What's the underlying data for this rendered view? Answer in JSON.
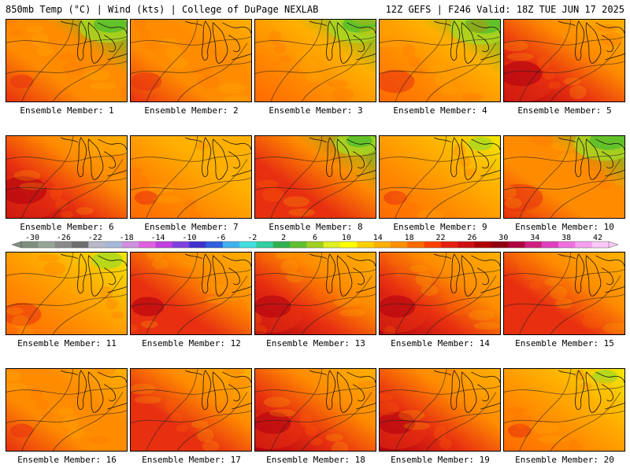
{
  "header": {
    "left": "850mb Temp (°C) | Wind (kts) | College of DuPage NEXLAB",
    "right": "12Z GEFS | F246 Valid: 18Z TUE JUN 17 2025"
  },
  "member_label_prefix": "Ensemble Member: ",
  "members": [
    {
      "id": 1,
      "label": "Ensemble Member: 1",
      "warmth": 0.55,
      "cool_ne": 0.9,
      "hot_sw": 0.3
    },
    {
      "id": 2,
      "label": "Ensemble Member: 2",
      "warmth": 0.55,
      "cool_ne": 0.2,
      "hot_sw": 0.4
    },
    {
      "id": 3,
      "label": "Ensemble Member: 3",
      "warmth": 0.45,
      "cool_ne": 0.9,
      "hot_sw": 0.2
    },
    {
      "id": 4,
      "label": "Ensemble Member: 4",
      "warmth": 0.35,
      "cool_ne": 1.0,
      "hot_sw": 0.5
    },
    {
      "id": 5,
      "label": "Ensemble Member: 5",
      "warmth": 0.8,
      "cool_ne": 0.1,
      "hot_sw": 0.9
    },
    {
      "id": 6,
      "label": "Ensemble Member: 6",
      "warmth": 0.75,
      "cool_ne": 0.1,
      "hot_sw": 1.0
    },
    {
      "id": 7,
      "label": "Ensemble Member: 7",
      "warmth": 0.5,
      "cool_ne": 0.2,
      "hot_sw": 0.3
    },
    {
      "id": 8,
      "label": "Ensemble Member: 8",
      "warmth": 0.65,
      "cool_ne": 0.7,
      "hot_sw": 0.6
    },
    {
      "id": 9,
      "label": "Ensemble Member: 9",
      "warmth": 0.5,
      "cool_ne": 0.4,
      "hot_sw": 0.3
    },
    {
      "id": 10,
      "label": "Ensemble Member: 10",
      "warmth": 0.6,
      "cool_ne": 1.0,
      "hot_sw": 0.6
    },
    {
      "id": 11,
      "label": "Ensemble Member: 11",
      "warmth": 0.5,
      "cool_ne": 0.5,
      "hot_sw": 0.5
    },
    {
      "id": 12,
      "label": "Ensemble Member: 12",
      "warmth": 0.7,
      "cool_ne": 0.2,
      "hot_sw": 0.7
    },
    {
      "id": 13,
      "label": "Ensemble Member: 13",
      "warmth": 0.75,
      "cool_ne": 0.1,
      "hot_sw": 0.8
    },
    {
      "id": 14,
      "label": "Ensemble Member: 14",
      "warmth": 0.75,
      "cool_ne": 0.1,
      "hot_sw": 0.8
    },
    {
      "id": 15,
      "label": "Ensemble Member: 15",
      "warmth": 0.65,
      "cool_ne": 0.2,
      "hot_sw": 0.6
    },
    {
      "id": 16,
      "label": "Ensemble Member: 16",
      "warmth": 0.55,
      "cool_ne": 0.2,
      "hot_sw": 0.3
    },
    {
      "id": 17,
      "label": "Ensemble Member: 17",
      "warmth": 0.65,
      "cool_ne": 0.1,
      "hot_sw": 0.5
    },
    {
      "id": 18,
      "label": "Ensemble Member: 18",
      "warmth": 0.75,
      "cool_ne": 0.1,
      "hot_sw": 0.8
    },
    {
      "id": 19,
      "label": "Ensemble Member: 19",
      "warmth": 0.75,
      "cool_ne": 0.1,
      "hot_sw": 0.8
    },
    {
      "id": 20,
      "label": "Ensemble Member: 20",
      "warmth": 0.45,
      "cool_ne": 0.4,
      "hot_sw": 0.3
    }
  ],
  "colorbar": {
    "tick_labels": [
      "-30",
      "-26",
      "-22",
      "-18",
      "-14",
      "-10",
      "-6",
      "-2",
      "2",
      "6",
      "10",
      "14",
      "18",
      "22",
      "26",
      "30",
      "34",
      "38",
      "42"
    ],
    "colors": [
      "#7f8f7f",
      "#97a597",
      "#8a8a8a",
      "#6e6e6e",
      "#b8b8c8",
      "#a8b8d8",
      "#d090e0",
      "#e060e0",
      "#c040e0",
      "#8040e0",
      "#4030d0",
      "#3060e0",
      "#40b0f0",
      "#40e0e0",
      "#30d0a0",
      "#30b050",
      "#60c030",
      "#a0d020",
      "#e0f020",
      "#ffff00",
      "#ffd000",
      "#ffb000",
      "#ff9000",
      "#ff6a00",
      "#ff4000",
      "#e82010",
      "#d01010",
      "#b00000",
      "#900010",
      "#b00040",
      "#d02080",
      "#e040c0",
      "#f070e0",
      "#f8a0f0",
      "#fcc8f8"
    ]
  },
  "palette": {
    "cool_green": "#5cbf2a",
    "light_green": "#a8d820",
    "yellow": "#f0e800",
    "orange_light": "#ffb000",
    "orange": "#ff8c00",
    "orange_dark": "#ff6a00",
    "red": "#e83010",
    "dark_red": "#b00010",
    "magenta": "#a01060"
  }
}
